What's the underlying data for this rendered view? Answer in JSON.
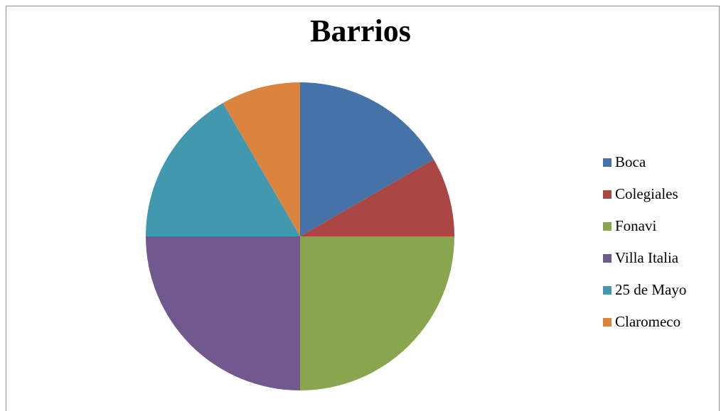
{
  "chart_data": {
    "type": "pie",
    "title": "Barrios",
    "categories": [
      "Boca",
      "Colegiales",
      "Fonavi",
      "Villa Italia",
      "25 de Mayo",
      "Claromeco"
    ],
    "values": [
      2,
      1,
      3,
      3,
      2,
      1
    ],
    "colors": [
      "#4572a7",
      "#aa4643",
      "#89a54e",
      "#71588f",
      "#4198af",
      "#db843d"
    ],
    "start_angle": "12 o'clock",
    "direction": "clockwise",
    "legend_position": "right"
  }
}
